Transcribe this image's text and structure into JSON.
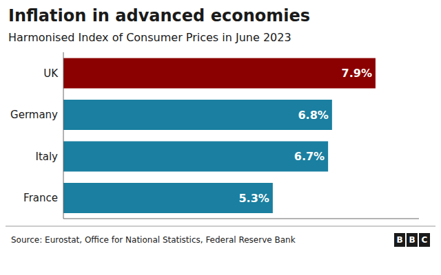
{
  "chart_data": {
    "type": "bar",
    "orientation": "horizontal",
    "title": "Inflation in advanced economies",
    "subtitle": "Harmonised Index of Consumer Prices in June 2023",
    "categories": [
      "France",
      "Italy",
      "Germany",
      "UK"
    ],
    "values": [
      5.3,
      6.7,
      6.8,
      7.9
    ],
    "value_labels": [
      "5.3%",
      "6.7%",
      "6.8%",
      "7.9%"
    ],
    "data_labels": true,
    "colors": [
      "#1a7fa0",
      "#1a7fa0",
      "#1a7fa0",
      "#8b0000"
    ],
    "xlim": [
      0,
      9
    ],
    "tick_labels": "y",
    "grid": false,
    "annotations": [
      "Source: Eurostat, Office for National Statistics, Federal Reserve Bank",
      "BBC"
    ]
  }
}
